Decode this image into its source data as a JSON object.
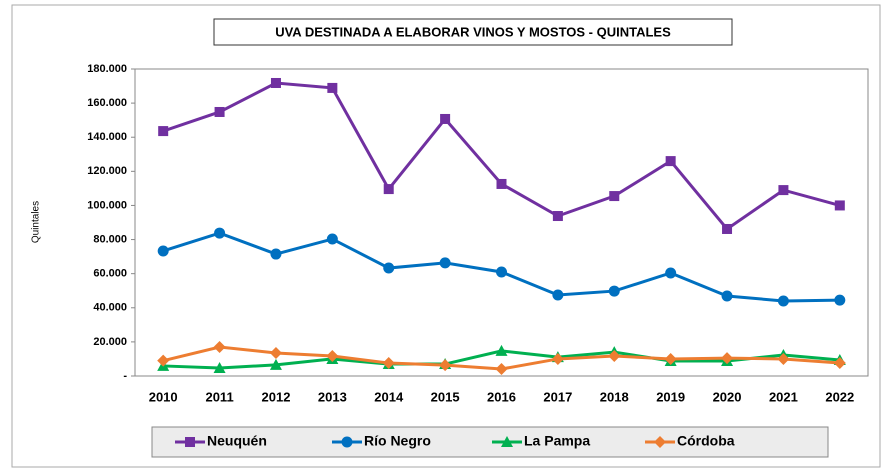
{
  "chart_data": {
    "type": "line",
    "title": "UVA DESTINADA A ELABORAR VINOS Y MOSTOS - QUINTALES",
    "y_label": "Quintales",
    "categories": [
      "2010",
      "2011",
      "2012",
      "2013",
      "2014",
      "2015",
      "2016",
      "2017",
      "2018",
      "2019",
      "2020",
      "2021",
      "2022"
    ],
    "series": [
      {
        "name": "Neuquén",
        "color": "#7030a0",
        "marker": "square",
        "values": [
          143600,
          154800,
          171800,
          168900,
          109600,
          150700,
          112600,
          93800,
          105500,
          126000,
          86200,
          109000,
          100000
        ]
      },
      {
        "name": "Río Negro",
        "color": "#0070c0",
        "marker": "circle",
        "values": [
          73300,
          83800,
          71500,
          80300,
          63300,
          66300,
          61000,
          47500,
          49800,
          60400,
          46900,
          44000,
          44500
        ]
      },
      {
        "name": "La Pampa",
        "color": "#00b050",
        "marker": "triangle",
        "values": [
          5900,
          4700,
          6500,
          10000,
          7000,
          7000,
          14700,
          11100,
          14000,
          8800,
          8800,
          12300,
          9400
        ]
      },
      {
        "name": "Córdoba",
        "color": "#ed7d31",
        "marker": "diamond",
        "values": [
          9000,
          17000,
          13500,
          11700,
          7600,
          6400,
          4100,
          10000,
          11700,
          10000,
          10500,
          10000,
          7600
        ]
      }
    ],
    "ylim": [
      0,
      180000
    ],
    "yticks": [
      {
        "value": 0,
        "label": "-"
      },
      {
        "value": 20000,
        "label": "20.000"
      },
      {
        "value": 40000,
        "label": "40.000"
      },
      {
        "value": 60000,
        "label": "60.000"
      },
      {
        "value": 80000,
        "label": "80.000"
      },
      {
        "value": 100000,
        "label": "100.000"
      },
      {
        "value": 120000,
        "label": "120.000"
      },
      {
        "value": 140000,
        "label": "140.000"
      },
      {
        "value": 160000,
        "label": "160.000"
      },
      {
        "value": 180000,
        "label": "180.000"
      }
    ],
    "legend": "bottom"
  }
}
